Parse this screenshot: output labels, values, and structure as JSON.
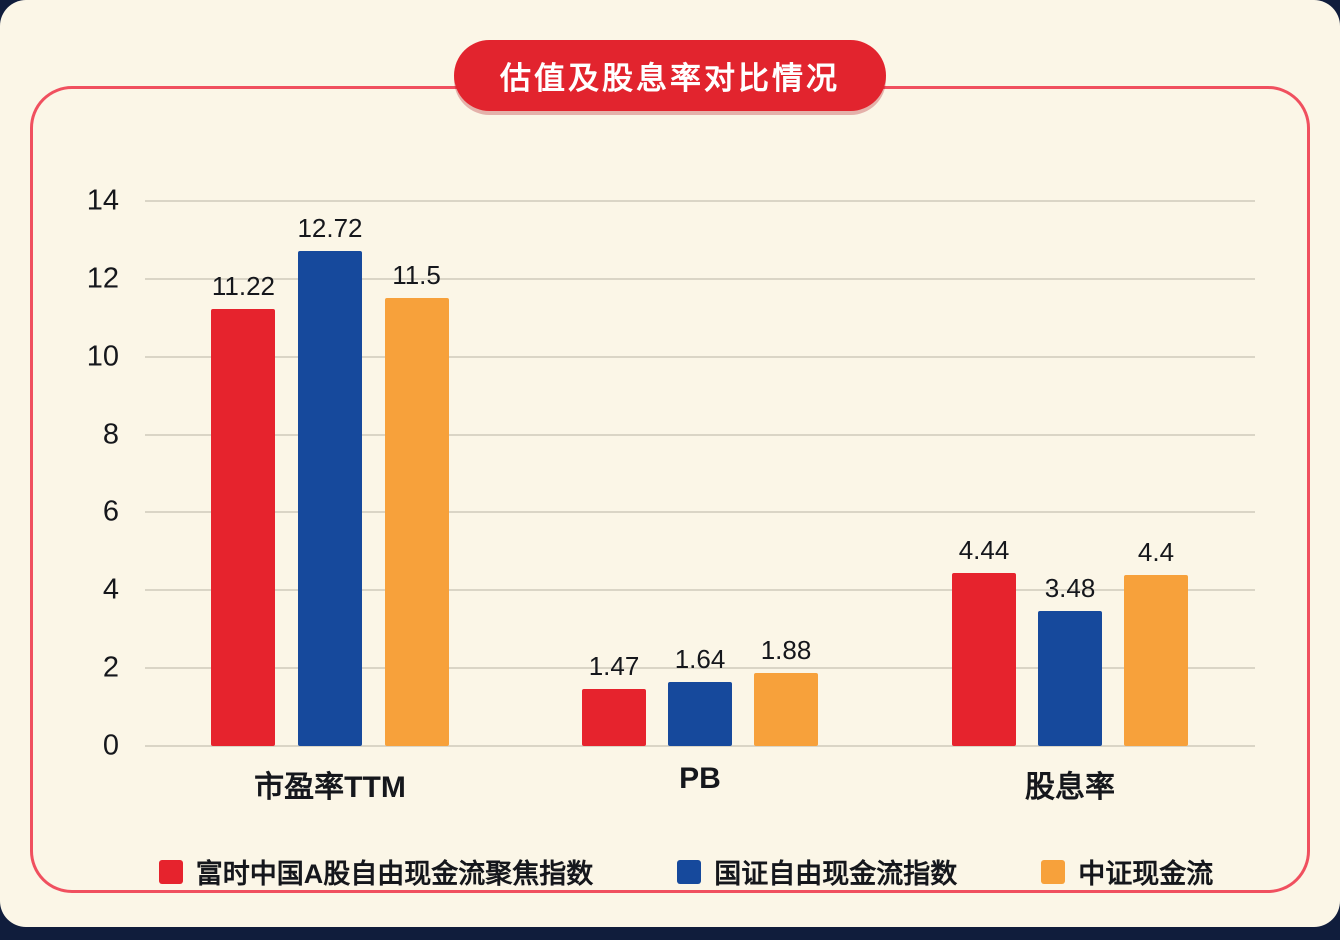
{
  "chart_data": {
    "type": "bar",
    "title": "估值及股息率对比情况",
    "categories": [
      "市盈率TTM",
      "PB",
      "股息率"
    ],
    "series": [
      {
        "name": "富时中国A股自由现金流聚焦指数",
        "color": "#e6232d",
        "values": [
          11.22,
          1.47,
          4.44
        ]
      },
      {
        "name": "国证自由现金流指数",
        "color": "#16499c",
        "values": [
          12.72,
          1.64,
          3.48
        ]
      },
      {
        "name": "中证现金流",
        "color": "#f7a13b",
        "values": [
          11.5,
          1.88,
          4.4
        ]
      }
    ],
    "ylim": [
      0,
      14
    ],
    "ytick_step": 2,
    "grid": true,
    "legend_position": "bottom",
    "colors": {
      "background": "#fbf6e7",
      "panel_border": "#f0505f",
      "title_pill": "#e2242e",
      "gridline": "#dad5c6",
      "text": "#15171c",
      "page_behind": "#101d3c"
    }
  }
}
